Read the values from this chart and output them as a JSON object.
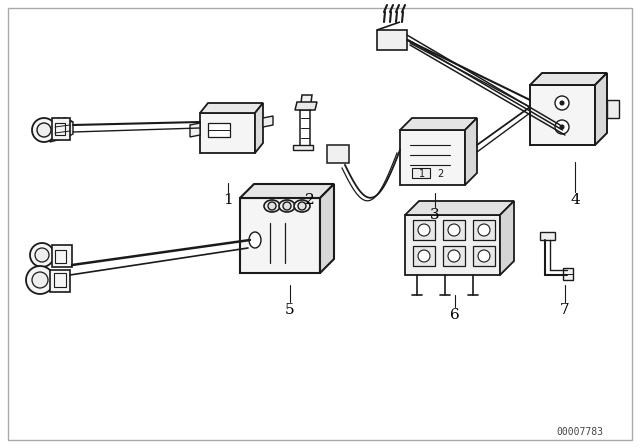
{
  "background_color": "#ffffff",
  "line_color": "#1a1a1a",
  "label_color": "#000000",
  "watermark": "00007783",
  "watermark_fontsize": 7,
  "fig_width": 6.4,
  "fig_height": 4.48,
  "dpi": 100,
  "border_lw": 1.0,
  "border_color": "#aaaaaa"
}
